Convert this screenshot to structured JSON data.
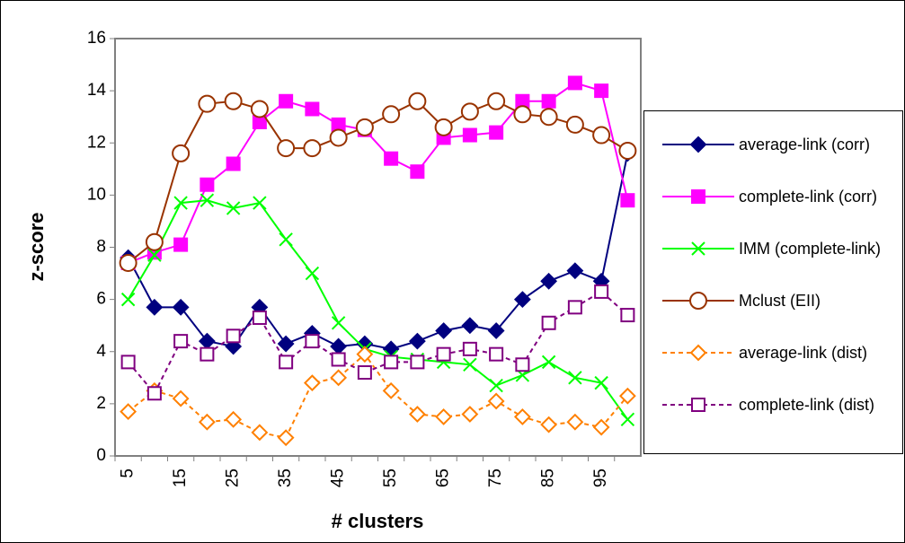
{
  "chart_data": {
    "type": "line",
    "ylabel": "z-score",
    "xlabel": "# clusters",
    "categories": [
      "5",
      null,
      "15",
      null,
      "25",
      null,
      "35",
      null,
      "45",
      null,
      "55",
      null,
      "65",
      null,
      "75",
      null,
      "85",
      null,
      "95",
      null
    ],
    "ylim": [
      0,
      16
    ],
    "yticks": [
      0,
      2,
      4,
      6,
      8,
      10,
      12,
      14,
      16
    ],
    "series": [
      {
        "name": "average-link (corr)",
        "color": "#00007f",
        "marker": "diamond",
        "filled": true,
        "dashed": false,
        "values": [
          7.6,
          5.7,
          5.7,
          4.4,
          4.2,
          5.7,
          4.3,
          4.7,
          4.2,
          4.3,
          4.1,
          4.4,
          4.8,
          5.0,
          4.8,
          6.0,
          6.7,
          7.1,
          6.7,
          11.6
        ]
      },
      {
        "name": "complete-link (corr)",
        "color": "#ff00ff",
        "marker": "square",
        "filled": true,
        "dashed": false,
        "values": [
          7.4,
          7.8,
          8.1,
          10.4,
          11.2,
          12.8,
          13.6,
          13.3,
          12.7,
          12.5,
          11.4,
          10.9,
          12.2,
          12.3,
          12.4,
          13.6,
          13.6,
          14.3,
          14.0,
          9.8
        ]
      },
      {
        "name": "IMM (complete-link)",
        "color": "#00ff00",
        "marker": "x",
        "filled": false,
        "dashed": false,
        "values": [
          6.0,
          7.7,
          9.7,
          9.8,
          9.5,
          9.7,
          8.3,
          7.0,
          5.1,
          4.1,
          3.8,
          3.7,
          3.6,
          3.5,
          2.7,
          3.1,
          3.6,
          3.0,
          2.8,
          1.4
        ]
      },
      {
        "name": "Mclust (EII)",
        "color": "#993300",
        "marker": "circle",
        "filled": false,
        "dashed": false,
        "values": [
          7.4,
          8.2,
          11.6,
          13.5,
          13.6,
          13.3,
          11.8,
          11.8,
          12.2,
          12.6,
          13.1,
          13.6,
          12.6,
          13.2,
          13.6,
          13.1,
          13.0,
          12.7,
          12.3,
          11.7
        ]
      },
      {
        "name": "average-link (dist)",
        "color": "#ff8000",
        "marker": "diamond",
        "filled": false,
        "dashed": true,
        "values": [
          1.7,
          2.5,
          2.2,
          1.3,
          1.4,
          0.9,
          0.7,
          2.8,
          3.0,
          3.9,
          2.5,
          1.6,
          1.5,
          1.6,
          2.1,
          1.5,
          1.2,
          1.3,
          1.1,
          2.3
        ]
      },
      {
        "name": "complete-link (dist)",
        "color": "#800080",
        "marker": "square",
        "filled": false,
        "dashed": true,
        "values": [
          3.6,
          2.4,
          4.4,
          3.9,
          4.6,
          5.3,
          3.6,
          4.4,
          3.7,
          3.2,
          3.6,
          3.6,
          3.9,
          4.1,
          3.9,
          3.5,
          5.1,
          5.7,
          6.3,
          5.4
        ]
      }
    ]
  }
}
